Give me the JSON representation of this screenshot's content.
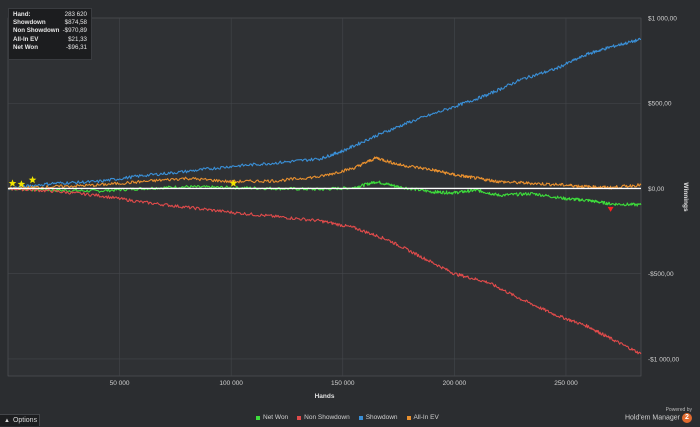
{
  "stats": [
    {
      "label": "Hand:",
      "value": "283 620"
    },
    {
      "label": "Showdown",
      "value": "$874,58"
    },
    {
      "label": "Non Showdown",
      "value": "-$970,89"
    },
    {
      "label": "All-In EV",
      "value": "$21,33"
    },
    {
      "label": "Net Won",
      "value": "-$96,31"
    }
  ],
  "options_label": "Options",
  "brand": {
    "powered_by": "Powered by",
    "name": "Hold'em Manager",
    "badge": "2"
  },
  "colors": {
    "background": "#2b2d30",
    "grid": "#44474b",
    "zero_line": "#ffffff",
    "net_won": "#3ddc3b",
    "non_showdown": "#e04b4b",
    "showdown": "#3a8fd6",
    "all_in_ev": "#e8902f",
    "star": "#f2e500"
  },
  "chart_data": {
    "type": "line",
    "xlabel": "Hands",
    "ylabel": "Winnings",
    "xlim": [
      0,
      283620
    ],
    "ylim": [
      -1100,
      1000
    ],
    "xticks": [
      50000,
      100000,
      150000,
      200000,
      250000
    ],
    "xtick_labels": [
      "50 000",
      "100 000",
      "150 000",
      "200 000",
      "250 000"
    ],
    "yticks": [
      1000,
      500,
      0,
      -500,
      -1000
    ],
    "ytick_labels": [
      "$1 000,00",
      "$500,00",
      "$0,00",
      "-$500,00",
      "-$1 000,00"
    ],
    "grid": true,
    "legend_position": "bottom",
    "series": [
      {
        "name": "Net Won",
        "color_key": "net_won",
        "x": [
          0,
          20000,
          40000,
          60000,
          80000,
          100000,
          120000,
          140000,
          155000,
          165000,
          175000,
          190000,
          200000,
          210000,
          220000,
          235000,
          250000,
          260000,
          270000,
          283620
        ],
        "y": [
          0,
          -10,
          -15,
          0,
          10,
          5,
          0,
          -5,
          5,
          40,
          10,
          -20,
          -25,
          -10,
          -40,
          -30,
          -60,
          -70,
          -90,
          -96.31
        ]
      },
      {
        "name": "Non Showdown",
        "color_key": "non_showdown",
        "x": [
          0,
          20000,
          40000,
          60000,
          80000,
          100000,
          120000,
          140000,
          155000,
          170000,
          185000,
          200000,
          215000,
          230000,
          245000,
          260000,
          270000,
          283620
        ],
        "y": [
          0,
          -15,
          -40,
          -80,
          -110,
          -140,
          -165,
          -190,
          -230,
          -300,
          -400,
          -500,
          -550,
          -650,
          -740,
          -810,
          -880,
          -970.89
        ]
      },
      {
        "name": "Showdown",
        "color_key": "showdown",
        "x": [
          0,
          20000,
          40000,
          60000,
          80000,
          100000,
          120000,
          140000,
          150000,
          165000,
          180000,
          200000,
          215000,
          230000,
          245000,
          260000,
          270000,
          283620
        ],
        "y": [
          0,
          30,
          40,
          75,
          100,
          130,
          150,
          175,
          220,
          310,
          390,
          480,
          550,
          640,
          700,
          790,
          830,
          874.58
        ]
      },
      {
        "name": "All-In EV",
        "color_key": "all_in_ev",
        "x": [
          0,
          20000,
          40000,
          60000,
          80000,
          100000,
          120000,
          140000,
          155000,
          165000,
          175000,
          190000,
          200000,
          210000,
          220000,
          235000,
          250000,
          260000,
          270000,
          283620
        ],
        "y": [
          0,
          10,
          20,
          40,
          60,
          40,
          45,
          70,
          120,
          180,
          140,
          110,
          80,
          60,
          40,
          30,
          20,
          10,
          5,
          21.33
        ]
      }
    ],
    "stars": [
      {
        "x": 2000,
        "y": 30
      },
      {
        "x": 6000,
        "y": 25
      },
      {
        "x": 11000,
        "y": 50
      },
      {
        "x": 101000,
        "y": 30
      }
    ],
    "marker": {
      "x": 270000,
      "y": -120
    }
  }
}
